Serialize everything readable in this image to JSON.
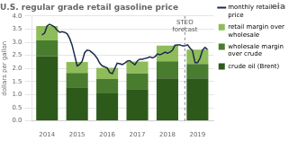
{
  "chart_data": {
    "type": "bar",
    "title": "U.S. regular grade retail gasoline price",
    "ylabel": "dollars per gallon",
    "stacked": true,
    "grid": "y",
    "legend": "right",
    "x": [
      2014,
      2015,
      2016,
      2017,
      2018,
      2019
    ],
    "xlim": [
      2013.5,
      2019.55
    ],
    "xticks": [
      2014,
      2015,
      2016,
      2017,
      2018,
      2019
    ],
    "ylim": [
      0.0,
      4.0
    ],
    "yticks": [
      {
        "value": 0.0,
        "label": "0.0"
      },
      {
        "value": 0.5,
        "label": "0.5"
      },
      {
        "value": 1.0,
        "label": "1.0"
      },
      {
        "value": 1.5,
        "label": "1.5"
      },
      {
        "value": 2.0,
        "label": "2.0"
      },
      {
        "value": 2.5,
        "label": "2.5"
      },
      {
        "value": 3.0,
        "label": "3.0"
      },
      {
        "value": 3.5,
        "label": "3.5"
      },
      {
        "value": 4.0,
        "label": "4.0"
      }
    ],
    "series": [
      {
        "name": "crude oil (Brent)",
        "type": "bar",
        "color": "#2d5a1b",
        "values": [
          2.47,
          1.28,
          1.05,
          1.21,
          1.62,
          1.62
        ]
      },
      {
        "name": "wholesale margin\nover crude",
        "type": "bar",
        "color": "#4a7c2f",
        "values": [
          0.6,
          0.55,
          0.55,
          0.6,
          0.65,
          0.55
        ]
      },
      {
        "name": "retail margin over\nwholesale",
        "type": "bar",
        "color": "#8fbc5a",
        "values": [
          0.55,
          0.42,
          0.42,
          0.45,
          0.6,
          0.55
        ]
      },
      {
        "name": "monthly retail\nprice",
        "type": "line",
        "color": "#1a2a4a",
        "x": [
          2013.83,
          2013.92,
          2014.0,
          2014.08,
          2014.17,
          2014.25,
          2014.33,
          2014.42,
          2014.5,
          2014.58,
          2014.67,
          2014.75,
          2014.83,
          2014.92,
          2015.0,
          2015.08,
          2015.17,
          2015.25,
          2015.33,
          2015.42,
          2015.5,
          2015.58,
          2015.67,
          2015.75,
          2015.83,
          2015.92,
          2016.0,
          2016.08,
          2016.17,
          2016.25,
          2016.33,
          2016.42,
          2016.5,
          2016.58,
          2016.67,
          2016.75,
          2016.83,
          2016.92,
          2017.0,
          2017.08,
          2017.17,
          2017.25,
          2017.33,
          2017.42,
          2017.5,
          2017.58,
          2017.67,
          2017.75,
          2017.83,
          2017.92,
          2018.0,
          2018.08,
          2018.17,
          2018.25,
          2018.33,
          2018.42,
          2018.5,
          2018.58,
          2018.67,
          2018.75,
          2018.83,
          2018.92,
          2019.0,
          2019.08,
          2019.17,
          2019.25,
          2019.33
        ],
        "values": [
          3.28,
          3.35,
          3.62,
          3.68,
          3.64,
          3.58,
          3.46,
          3.38,
          3.4,
          3.38,
          3.32,
          3.15,
          2.9,
          2.48,
          2.1,
          2.15,
          2.28,
          2.6,
          2.7,
          2.68,
          2.6,
          2.52,
          2.38,
          2.2,
          2.1,
          2.06,
          2.02,
          1.85,
          1.8,
          2.0,
          2.2,
          2.18,
          2.15,
          2.2,
          2.28,
          2.3,
          2.22,
          2.14,
          2.28,
          2.35,
          2.35,
          2.38,
          2.4,
          2.44,
          2.4,
          2.44,
          2.55,
          2.52,
          2.56,
          2.62,
          2.58,
          2.62,
          2.7,
          2.88,
          2.9,
          2.9,
          2.86,
          2.86,
          2.9,
          2.78,
          2.68,
          2.22,
          2.22,
          2.38,
          2.7,
          2.8,
          2.72
        ]
      }
    ],
    "annotations": [
      {
        "text": "STEO\nforecast",
        "x": 2018.58,
        "y": 3.88,
        "line_style": "dashed"
      },
      {
        "text": "eia"
      }
    ]
  }
}
